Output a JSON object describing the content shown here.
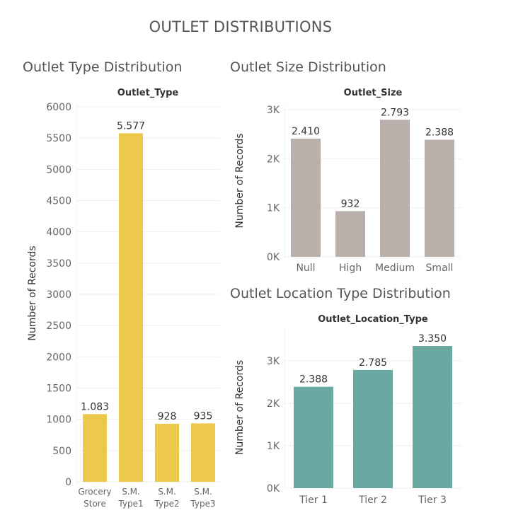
{
  "dashboard": {
    "title": "OUTLET DISTRIBUTIONS"
  },
  "chart_data": [
    {
      "type": "bar",
      "title": "Outlet Type Distribution",
      "header": "Outlet_Type",
      "ylabel": "Number of Records",
      "xlabel": "",
      "categories": [
        [
          "Grocery",
          "Store"
        ],
        [
          "S.M.",
          "Type1"
        ],
        [
          "S.M.",
          "Type2"
        ],
        [
          "S.M.",
          "Type3"
        ]
      ],
      "values": [
        1083,
        5577,
        928,
        935
      ],
      "data_labels": [
        "1.083",
        "5.577",
        "928",
        "935"
      ],
      "yticks": [
        0,
        500,
        1000,
        1500,
        2000,
        2500,
        3000,
        3500,
        4000,
        4500,
        5000,
        5500,
        6000
      ],
      "ytick_labels": [
        "0",
        "500",
        "1000",
        "1500",
        "2000",
        "2500",
        "3000",
        "3500",
        "4000",
        "4500",
        "5000",
        "5500",
        "6000"
      ],
      "ylim": [
        0,
        6000
      ],
      "color": "#ecc94b",
      "grid": true
    },
    {
      "type": "bar",
      "title": "Outlet Size Distribution",
      "header": "Outlet_Size",
      "ylabel": "Number of Records",
      "xlabel": "",
      "categories": [
        "Null",
        "High",
        "Medium",
        "Small"
      ],
      "values": [
        2410,
        932,
        2793,
        2388
      ],
      "data_labels": [
        "2.410",
        "932",
        "2.793",
        "2.388"
      ],
      "yticks": [
        0,
        1000,
        2000,
        3000
      ],
      "ytick_labels": [
        "0K",
        "1K",
        "2K",
        "3K"
      ],
      "ylim": [
        0,
        3000
      ],
      "color": "#bab0ab",
      "grid": true
    },
    {
      "type": "bar",
      "title": "Outlet Location Type Distribution",
      "header": "Outlet_Location_Type",
      "ylabel": "Number of Records",
      "xlabel": "",
      "categories": [
        "Tier 1",
        "Tier 2",
        "Tier 3"
      ],
      "values": [
        2388,
        2785,
        3350
      ],
      "data_labels": [
        "2.388",
        "2.785",
        "3.350"
      ],
      "yticks": [
        0,
        1000,
        2000,
        3000
      ],
      "ytick_labels": [
        "0K",
        "1K",
        "2K",
        "3K"
      ],
      "ylim": [
        0,
        3500
      ],
      "color": "#69a9a2",
      "grid": true
    }
  ]
}
